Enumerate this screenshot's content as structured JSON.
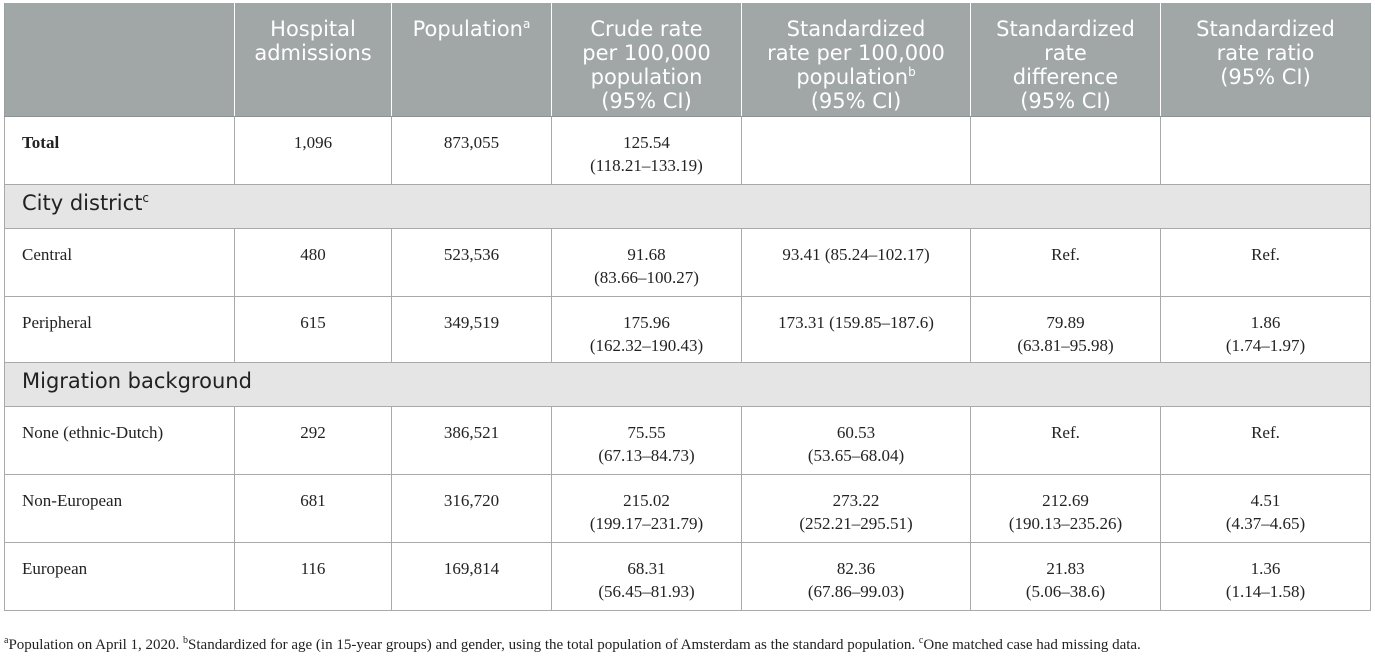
{
  "header": {
    "col0": "",
    "col1": [
      "Hospital",
      "admissions"
    ],
    "col2": "Population",
    "col2_sup": "a",
    "col3": [
      "Crude rate",
      "per 100,000",
      "population",
      "(95% CI)"
    ],
    "col4": [
      "Standardized",
      "rate per 100,000",
      "population",
      "(95% CI)"
    ],
    "col4_sup": "b",
    "col5": [
      "Standardized",
      "rate",
      "difference",
      "(95% CI)"
    ],
    "col6": [
      "Standardized",
      "rate ratio",
      "(95% CI)"
    ]
  },
  "rows": {
    "total": {
      "label": "Total",
      "admissions": "1,096",
      "population": "873,055",
      "crude": [
        "125.54",
        "(118.21–133.19)"
      ]
    },
    "section_city": {
      "label": "City district",
      "sup": "c"
    },
    "central": {
      "label": "Central",
      "admissions": "480",
      "population": "523,536",
      "crude": [
        "91.68",
        "(83.66–100.27)"
      ],
      "std": [
        "93.41 (85.24–102.17)"
      ],
      "diff": [
        "Ref."
      ],
      "ratio": [
        "Ref."
      ]
    },
    "peripheral": {
      "label": "Peripheral",
      "admissions": "615",
      "population": "349,519",
      "crude": [
        "175.96",
        "(162.32–190.43)"
      ],
      "std": [
        "173.31 (159.85–187.6)"
      ],
      "diff": [
        "79.89",
        "(63.81–95.98)"
      ],
      "ratio": [
        "1.86",
        "(1.74–1.97)"
      ]
    },
    "section_migration": {
      "label": "Migration background"
    },
    "none": {
      "label": "None (ethnic-Dutch)",
      "admissions": "292",
      "population": "386,521",
      "crude": [
        "75.55",
        "(67.13–84.73)"
      ],
      "std": [
        "60.53",
        "(53.65–68.04)"
      ],
      "diff": [
        "Ref."
      ],
      "ratio": [
        "Ref."
      ]
    },
    "noneuropean": {
      "label": "Non-European",
      "admissions": "681",
      "population": "316,720",
      "crude": [
        "215.02",
        "(199.17–231.79)"
      ],
      "std": [
        "273.22",
        "(252.21–295.51)"
      ],
      "diff": [
        "212.69",
        "(190.13–235.26)"
      ],
      "ratio": [
        "4.51",
        "(4.37–4.65)"
      ]
    },
    "european": {
      "label": "European",
      "admissions": "116",
      "population": "169,814",
      "crude": [
        "68.31",
        "(56.45–81.93)"
      ],
      "std": [
        "82.36",
        "(67.86–99.03)"
      ],
      "diff": [
        "21.83",
        "(5.06–38.6)"
      ],
      "ratio": [
        "1.36",
        "(1.14–1.58)"
      ]
    }
  },
  "footnote": {
    "a_mark": "a",
    "a_text": "Population on April 1, 2020. ",
    "b_mark": "b",
    "b_text": "Standardized for age (in 15-year groups) and gender, using the total population of Amsterdam as the standard population. ",
    "c_mark": "c",
    "c_text": "One matched case had missing data."
  }
}
